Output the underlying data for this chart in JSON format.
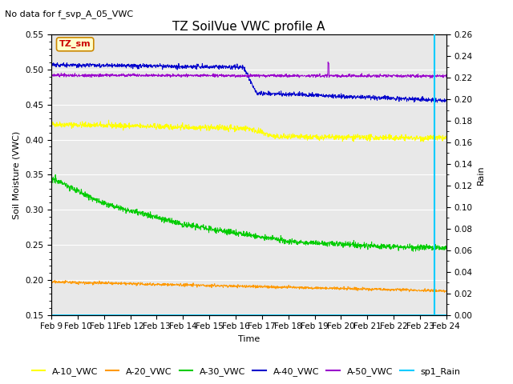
{
  "title": "TZ SoilVue VWC profile A",
  "no_data_text": "No data for f_svp_A_05_VWC",
  "ylabel": "Soil Moisture (VWC)",
  "ylabel2": "Rain",
  "xlabel": "Time",
  "ylim": [
    0.15,
    0.55
  ],
  "ylim2": [
    0.0,
    0.26
  ],
  "background_color": "#e8e8e8",
  "fig_background": "#ffffff",
  "tz_sm_label": "TZ_sm",
  "tz_sm_box_color": "#ffffcc",
  "tz_sm_text_color": "#cc0000",
  "tz_sm_edge_color": "#cc8800",
  "colors": {
    "A10": "#ffff00",
    "A20": "#ff9900",
    "A30": "#00cc00",
    "A40": "#0000cc",
    "A50": "#9900cc",
    "Rain": "#00ccff"
  },
  "legend_labels": [
    "A-10_VWC",
    "A-20_VWC",
    "A-30_VWC",
    "A-40_VWC",
    "A-50_VWC",
    "sp1_Rain"
  ],
  "x_tick_labels": [
    "Feb 9",
    "Feb 10",
    "Feb 11",
    "Feb 12",
    "Feb 13",
    "Feb 14",
    "Feb 15",
    "Feb 16",
    "Feb 17",
    "Feb 18",
    "Feb 19",
    "Feb 20",
    "Feb 21",
    "Feb 22",
    "Feb 23",
    "Feb 24"
  ],
  "rain_vline_x": 14.55,
  "title_fontsize": 11,
  "axis_fontsize": 8,
  "tick_fontsize": 7.5,
  "legend_fontsize": 8,
  "no_data_fontsize": 8
}
